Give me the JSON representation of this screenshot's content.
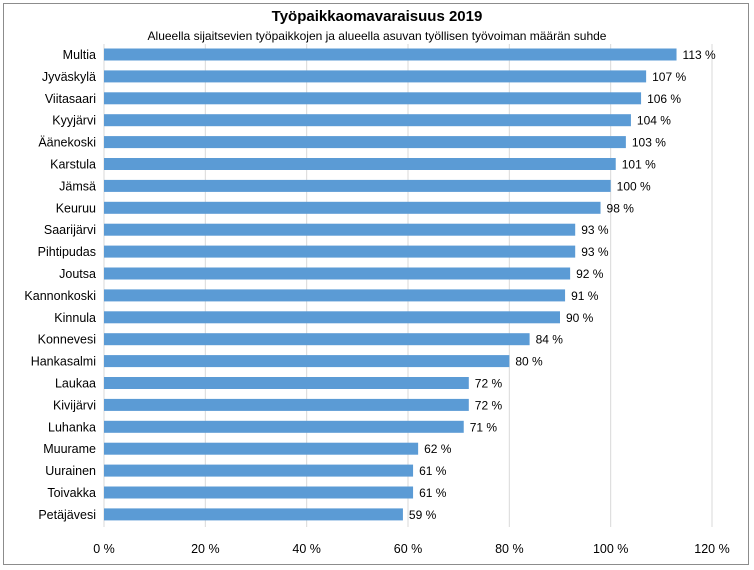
{
  "chart_data": {
    "type": "bar",
    "orientation": "horizontal",
    "title": "Työpaikkaomavaraisuus 2019",
    "subtitle": "Alueella sijaitsevien työpaikkojen ja alueella asuvan työllisen työvoiman määrän suhde",
    "categories": [
      "Multia",
      "Jyväskylä",
      "Viitasaari",
      "Kyyjärvi",
      "Äänekoski",
      "Karstula",
      "Jämsä",
      "Keuruu",
      "Saarijärvi",
      "Pihtipudas",
      "Joutsa",
      "Kannonkoski",
      "Kinnula",
      "Konnevesi",
      "Hankasalmi",
      "Laukaa",
      "Kivijärvi",
      "Luhanka",
      "Muurame",
      "Uurainen",
      "Toivakka",
      "Petäjävesi"
    ],
    "values": [
      113,
      107,
      106,
      104,
      103,
      101,
      100,
      98,
      93,
      93,
      92,
      91,
      90,
      84,
      80,
      72,
      72,
      71,
      62,
      61,
      61,
      59
    ],
    "value_labels": [
      "113 %",
      "107 %",
      "106 %",
      "104 %",
      "103 %",
      "101 %",
      "100 %",
      "98 %",
      "93 %",
      "93 %",
      "92 %",
      "91 %",
      "90 %",
      "84 %",
      "80 %",
      "72 %",
      "72 %",
      "71 %",
      "62 %",
      "61 %",
      "61 %",
      "59 %"
    ],
    "x_ticks": [
      0,
      20,
      40,
      60,
      80,
      100,
      120
    ],
    "x_tick_labels": [
      "0 %",
      "20 %",
      "40 %",
      "60 %",
      "80 %",
      "100 %",
      "120 %"
    ],
    "xlim": [
      0,
      120
    ],
    "xlabel": "",
    "ylabel": "",
    "grid": "vertical",
    "legend": "none",
    "bar_color": "#5b9bd5",
    "grid_color": "#d9d9d9"
  }
}
